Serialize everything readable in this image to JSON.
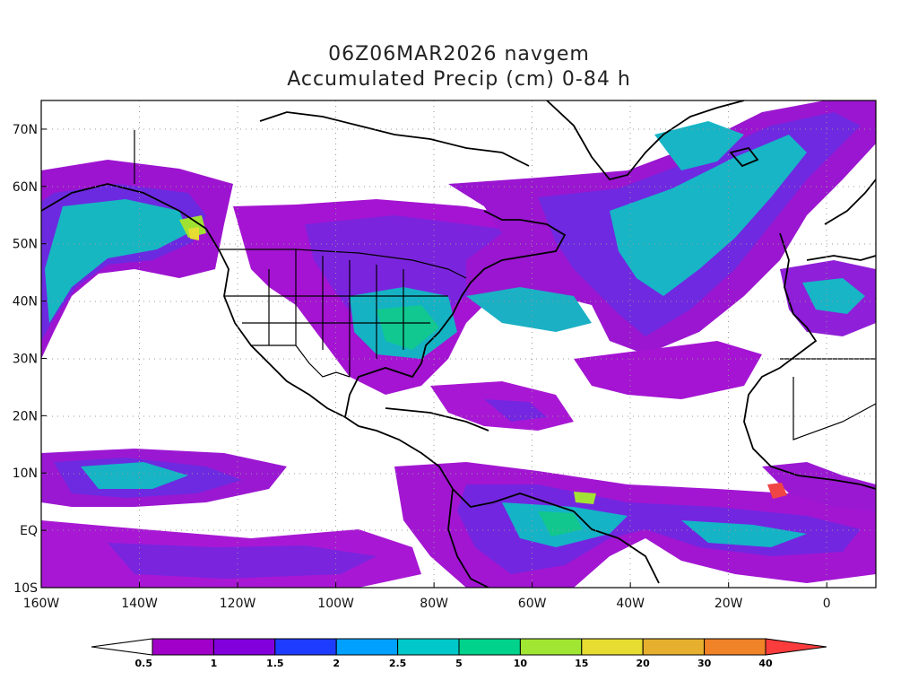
{
  "title": {
    "line1": "06Z06MAR2026 navgem",
    "line2": "Accumulated Precip (cm) 0-84 h"
  },
  "chart_data": {
    "type": "heatmap",
    "lon_range": [
      -160,
      10
    ],
    "lat_range": [
      -10,
      75
    ],
    "lat_ticks": [
      "70N",
      "60N",
      "50N",
      "40N",
      "30N",
      "20N",
      "10N",
      "EQ",
      "10S"
    ],
    "lat_values": [
      70,
      60,
      50,
      40,
      30,
      20,
      10,
      0,
      -10
    ],
    "lon_ticks": [
      "160W",
      "140W",
      "120W",
      "100W",
      "80W",
      "60W",
      "40W",
      "20W",
      "0"
    ],
    "lon_values": [
      -160,
      -140,
      -120,
      -100,
      -80,
      -60,
      -40,
      -20,
      0
    ],
    "grid": "dotted",
    "colorbar": {
      "labels": [
        "0.5",
        "1",
        "1.5",
        "2",
        "2.5",
        "5",
        "10",
        "15",
        "20",
        "30",
        "40"
      ],
      "colors": [
        "#ffffff",
        "#a000c8",
        "#8200dc",
        "#1e3cff",
        "#00a0ff",
        "#00c8c8",
        "#00d28c",
        "#a0e632",
        "#e6dc32",
        "#e6af2d",
        "#f08228",
        "#fa3c3c"
      ]
    }
  }
}
